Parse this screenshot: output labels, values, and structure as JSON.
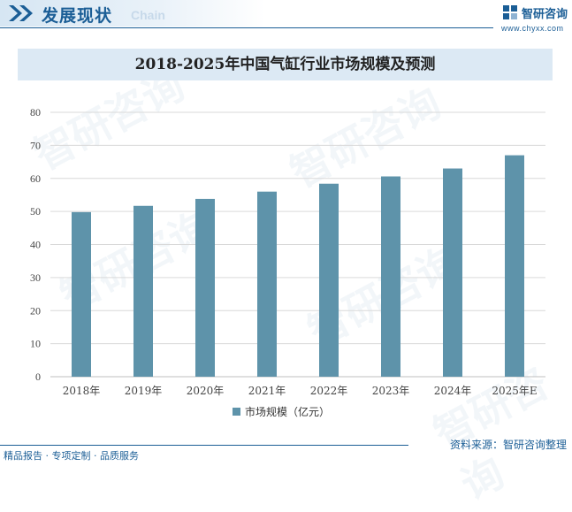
{
  "header": {
    "title": "发展现状",
    "subtitle": "Chain",
    "brand_name": "智研咨询",
    "brand_url": "www.chyxx.com"
  },
  "footer": {
    "left_text": "精品报告 · 专项定制 · 品质服务",
    "source": "资料来源：智研咨询整理"
  },
  "watermark": "智研咨询",
  "colors": {
    "bar": "#5e93aa",
    "brand": "#1b5e96",
    "title_bg": "#dce9f4",
    "grid": "#d9d9d9"
  },
  "chart_data": {
    "type": "bar",
    "title": "2018-2025年中国气缸行业市场规模及预测",
    "categories": [
      "2018年",
      "2019年",
      "2020年",
      "2021年",
      "2022年",
      "2023年",
      "2024年",
      "2025年E"
    ],
    "series": [
      {
        "name": "市场规模（亿元）",
        "values": [
          49.8,
          51.7,
          53.8,
          56.0,
          58.4,
          60.6,
          63.0,
          67.0
        ]
      }
    ],
    "ylim": [
      0,
      80
    ],
    "yticks": [
      0,
      10,
      20,
      30,
      40,
      50,
      60,
      70,
      80
    ],
    "grid": true,
    "legend_position": "bottom"
  }
}
